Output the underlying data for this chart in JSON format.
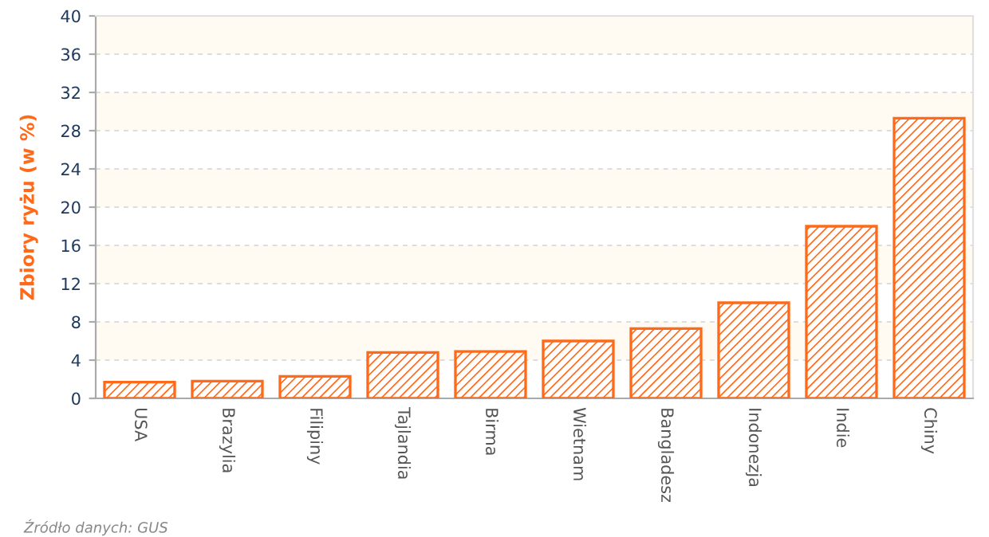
{
  "chart_data": {
    "type": "bar",
    "ylabel": "Zbiory ryżu (w %)",
    "categories": [
      "USA",
      "Brazylia",
      "Filipiny",
      "Tajlandia",
      "Birma",
      "Wietnam",
      "Bangladesz",
      "Indonezja",
      "Indie",
      "Chiny"
    ],
    "series": [
      {
        "color": "#ff6a1a",
        "values": [
          1.7,
          1.8,
          2.3,
          4.8,
          4.9,
          6.0,
          7.3,
          10.0,
          18.0,
          29.3
        ]
      }
    ],
    "ylim": [
      0,
      40
    ],
    "yticks": [
      0,
      4,
      8,
      12,
      16,
      20,
      24,
      28,
      32,
      36,
      40
    ],
    "grid": "y",
    "annotations": [
      "Źródło danych: GUS"
    ]
  }
}
